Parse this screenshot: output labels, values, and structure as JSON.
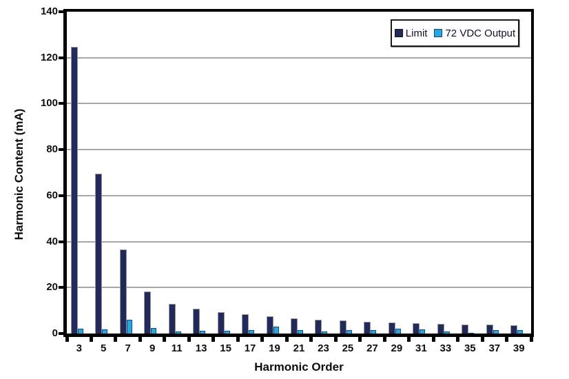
{
  "chart_data": {
    "type": "bar",
    "categories": [
      "3",
      "5",
      "7",
      "9",
      "11",
      "13",
      "15",
      "17",
      "19",
      "21",
      "23",
      "25",
      "27",
      "29",
      "31",
      "33",
      "35",
      "37",
      "39"
    ],
    "series": [
      {
        "name": "Limit",
        "color": "#222a5c",
        "values": [
          124.8,
          69.7,
          36.7,
          18.4,
          12.8,
          10.9,
          9.4,
          8.3,
          7.4,
          6.7,
          6.1,
          5.7,
          5.2,
          4.9,
          4.6,
          4.3,
          4.0,
          3.8,
          3.6
        ]
      },
      {
        "name": "72 VDC Output",
        "color": "#2aa6dc",
        "values": [
          2.2,
          1.9,
          6.0,
          2.4,
          1.0,
          1.2,
          1.2,
          1.5,
          2.9,
          1.5,
          1.0,
          1.4,
          1.6,
          2.2,
          1.9,
          1.0,
          0.3,
          1.6,
          1.5
        ]
      }
    ],
    "xlabel": "Harmonic Order",
    "ylabel": "Harmonic Content (mA)",
    "ylim": [
      0,
      140
    ],
    "yticks": [
      0,
      20,
      40,
      60,
      80,
      100,
      120,
      140
    ],
    "grid": "horizontal gray lines at each y tick",
    "legend_position": "top-right inside plot"
  },
  "colors": {
    "limit_bar": "#222a5c",
    "output_bar": "#2aa6dc",
    "gridline": "#a6a6a6",
    "axis": "#000000",
    "background": "#ffffff"
  }
}
